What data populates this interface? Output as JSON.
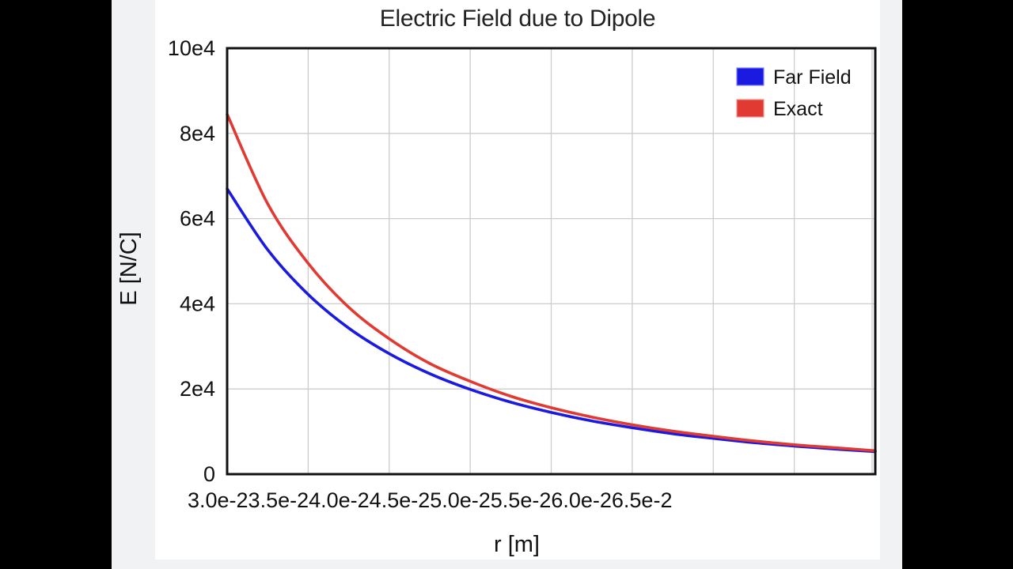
{
  "chart_data": {
    "type": "line",
    "title": "Electric Field due to Dipole",
    "xlabel": "r [m]",
    "ylabel": "E [N/C]",
    "xlim": [
      0.03,
      0.07
    ],
    "ylim": [
      0,
      100000
    ],
    "x_tick_values": [
      0.03,
      0.035,
      0.04,
      0.045,
      0.05,
      0.055,
      0.06,
      0.065
    ],
    "x_tick_labels": [
      "3.0e-2",
      "3.5e-2",
      "4.0e-2",
      "4.5e-2",
      "5.0e-2",
      "5.5e-2",
      "6.0e-2",
      "6.5e-2"
    ],
    "x_tick_text": "3.0e-23.5e-24.0e-24.5e-25.0e-25.5e-26.0e-26.5e-2",
    "y_tick_values": [
      0,
      20000,
      40000,
      60000,
      80000,
      100000
    ],
    "y_tick_labels": [
      "0",
      "2e4",
      "4e4",
      "6e4",
      "8e4",
      "10e4"
    ],
    "grid": true,
    "legend_position": "top-right",
    "x": [
      0.03,
      0.0325,
      0.035,
      0.0375,
      0.04,
      0.0425,
      0.045,
      0.0475,
      0.05,
      0.0525,
      0.055,
      0.0575,
      0.06,
      0.0625,
      0.065,
      0.0675,
      0.07
    ],
    "series": [
      {
        "name": "Far Field",
        "color": "#1a1ae0",
        "values": [
          67000,
          52700,
          42200,
          34300,
          28300,
          23600,
          19900,
          16900,
          14500,
          12500,
          10900,
          9500,
          8400,
          7400,
          6600,
          5900,
          5300
        ]
      },
      {
        "name": "Exact",
        "color": "#e03a32",
        "values": [
          84500,
          63500,
          49500,
          39200,
          31800,
          26000,
          21800,
          18300,
          15600,
          13400,
          11600,
          10100,
          8900,
          7800,
          6900,
          6200,
          5500
        ]
      }
    ]
  }
}
